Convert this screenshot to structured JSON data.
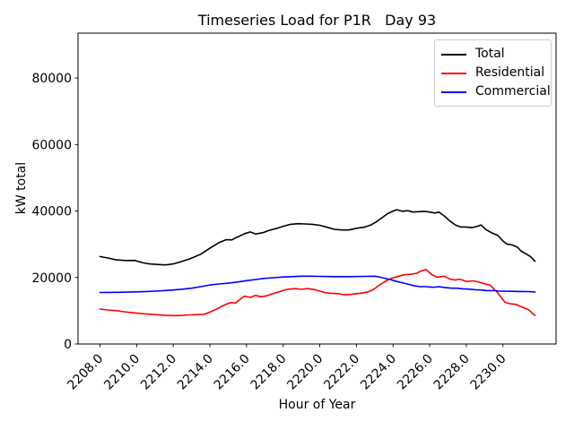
{
  "chart_data": {
    "type": "line",
    "title": "Timeseries Load for P1R   Day 93",
    "xlabel": "Hour of Year",
    "ylabel": "kW total",
    "grid": false,
    "legend_position": "upper right",
    "xlim": [
      2206.8,
      2232.9
    ],
    "ylim": [
      0,
      93500
    ],
    "xticks": [
      {
        "value": 2208,
        "label": "2208.0"
      },
      {
        "value": 2210,
        "label": "2210.0"
      },
      {
        "value": 2212,
        "label": "2212.0"
      },
      {
        "value": 2214,
        "label": "2214.0"
      },
      {
        "value": 2216,
        "label": "2216.0"
      },
      {
        "value": 2218,
        "label": "2218.0"
      },
      {
        "value": 2220,
        "label": "2220.0"
      },
      {
        "value": 2222,
        "label": "2222.0"
      },
      {
        "value": 2224,
        "label": "2224.0"
      },
      {
        "value": 2226,
        "label": "2226.0"
      },
      {
        "value": 2228,
        "label": "2228.0"
      },
      {
        "value": 2230,
        "label": "2230.0"
      }
    ],
    "yticks": [
      {
        "value": 0,
        "label": "0"
      },
      {
        "value": 20000,
        "label": "20000"
      },
      {
        "value": 40000,
        "label": "40000"
      },
      {
        "value": 60000,
        "label": "60000"
      },
      {
        "value": 80000,
        "label": "80000"
      }
    ],
    "series": [
      {
        "name": "Total",
        "color": "#000000",
        "points": [
          [
            2208.0,
            26300
          ],
          [
            2208.4,
            25900
          ],
          [
            2208.9,
            25300
          ],
          [
            2209.4,
            25100
          ],
          [
            2209.9,
            25150
          ],
          [
            2210.3,
            24500
          ],
          [
            2210.7,
            24100
          ],
          [
            2211.2,
            23900
          ],
          [
            2211.6,
            23800
          ],
          [
            2212.0,
            24100
          ],
          [
            2212.4,
            24700
          ],
          [
            2212.9,
            25600
          ],
          [
            2213.2,
            26300
          ],
          [
            2213.5,
            27000
          ],
          [
            2214.0,
            28800
          ],
          [
            2214.5,
            30500
          ],
          [
            2214.9,
            31400
          ],
          [
            2215.2,
            31300
          ],
          [
            2215.4,
            31900
          ],
          [
            2215.9,
            33200
          ],
          [
            2216.2,
            33700
          ],
          [
            2216.5,
            33100
          ],
          [
            2216.9,
            33500
          ],
          [
            2217.2,
            34100
          ],
          [
            2217.6,
            34700
          ],
          [
            2218.0,
            35400
          ],
          [
            2218.4,
            36000
          ],
          [
            2218.8,
            36200
          ],
          [
            2219.2,
            36100
          ],
          [
            2219.6,
            36000
          ],
          [
            2220.0,
            35700
          ],
          [
            2220.4,
            35100
          ],
          [
            2220.8,
            34500
          ],
          [
            2221.2,
            34300
          ],
          [
            2221.6,
            34300
          ],
          [
            2222.0,
            34800
          ],
          [
            2222.4,
            35100
          ],
          [
            2222.8,
            35800
          ],
          [
            2223.1,
            36800
          ],
          [
            2223.4,
            38000
          ],
          [
            2223.7,
            39200
          ],
          [
            2224.0,
            40000
          ],
          [
            2224.2,
            40400
          ],
          [
            2224.5,
            39900
          ],
          [
            2224.8,
            40100
          ],
          [
            2225.1,
            39700
          ],
          [
            2225.4,
            39800
          ],
          [
            2225.7,
            39900
          ],
          [
            2226.0,
            39700
          ],
          [
            2226.3,
            39400
          ],
          [
            2226.5,
            39700
          ],
          [
            2226.8,
            38500
          ],
          [
            2227.1,
            37000
          ],
          [
            2227.4,
            35800
          ],
          [
            2227.7,
            35200
          ],
          [
            2228.0,
            35200
          ],
          [
            2228.3,
            35000
          ],
          [
            2228.6,
            35400
          ],
          [
            2228.8,
            35800
          ],
          [
            2229.1,
            34300
          ],
          [
            2229.4,
            33400
          ],
          [
            2229.7,
            32700
          ],
          [
            2230.0,
            31000
          ],
          [
            2230.2,
            30100
          ],
          [
            2230.5,
            29800
          ],
          [
            2230.8,
            29100
          ],
          [
            2231.0,
            27900
          ],
          [
            2231.2,
            27300
          ],
          [
            2231.5,
            26300
          ],
          [
            2231.75,
            24900
          ]
        ]
      },
      {
        "name": "Residential",
        "color": "#ff0000",
        "points": [
          [
            2208.0,
            10500
          ],
          [
            2208.4,
            10250
          ],
          [
            2208.9,
            10050
          ],
          [
            2209.3,
            9700
          ],
          [
            2209.7,
            9450
          ],
          [
            2210.1,
            9250
          ],
          [
            2210.5,
            9050
          ],
          [
            2211.0,
            8850
          ],
          [
            2211.5,
            8650
          ],
          [
            2212.0,
            8550
          ],
          [
            2212.5,
            8600
          ],
          [
            2212.9,
            8750
          ],
          [
            2213.3,
            8850
          ],
          [
            2213.7,
            8950
          ],
          [
            2214.0,
            9600
          ],
          [
            2214.4,
            10600
          ],
          [
            2214.7,
            11500
          ],
          [
            2215.0,
            12200
          ],
          [
            2215.2,
            12500
          ],
          [
            2215.4,
            12300
          ],
          [
            2215.7,
            13700
          ],
          [
            2215.9,
            14400
          ],
          [
            2216.2,
            14000
          ],
          [
            2216.5,
            14600
          ],
          [
            2216.8,
            14200
          ],
          [
            2217.1,
            14500
          ],
          [
            2217.4,
            15100
          ],
          [
            2217.8,
            15700
          ],
          [
            2218.1,
            16300
          ],
          [
            2218.4,
            16550
          ],
          [
            2218.7,
            16650
          ],
          [
            2219.0,
            16450
          ],
          [
            2219.3,
            16650
          ],
          [
            2219.7,
            16400
          ],
          [
            2220.0,
            15900
          ],
          [
            2220.3,
            15450
          ],
          [
            2220.6,
            15250
          ],
          [
            2221.0,
            15150
          ],
          [
            2221.3,
            14850
          ],
          [
            2221.6,
            14850
          ],
          [
            2221.9,
            15050
          ],
          [
            2222.2,
            15250
          ],
          [
            2222.6,
            15600
          ],
          [
            2222.9,
            16300
          ],
          [
            2223.2,
            17500
          ],
          [
            2223.5,
            18600
          ],
          [
            2223.8,
            19500
          ],
          [
            2224.0,
            19900
          ],
          [
            2224.3,
            20400
          ],
          [
            2224.6,
            20800
          ],
          [
            2225.0,
            21000
          ],
          [
            2225.3,
            21300
          ],
          [
            2225.5,
            21900
          ],
          [
            2225.8,
            22400
          ],
          [
            2226.1,
            20900
          ],
          [
            2226.4,
            20100
          ],
          [
            2226.8,
            20400
          ],
          [
            2227.1,
            19500
          ],
          [
            2227.4,
            19250
          ],
          [
            2227.6,
            19500
          ],
          [
            2227.8,
            19250
          ],
          [
            2228.0,
            18800
          ],
          [
            2228.4,
            19000
          ],
          [
            2228.7,
            18600
          ],
          [
            2229.0,
            18100
          ],
          [
            2229.3,
            17700
          ],
          [
            2229.7,
            15500
          ],
          [
            2230.1,
            12600
          ],
          [
            2230.4,
            12100
          ],
          [
            2230.7,
            11900
          ],
          [
            2231.1,
            11000
          ],
          [
            2231.4,
            10300
          ],
          [
            2231.75,
            8600
          ]
        ]
      },
      {
        "name": "Commercial",
        "color": "#0000ff",
        "points": [
          [
            2208.0,
            15500
          ],
          [
            2208.5,
            15520
          ],
          [
            2209.0,
            15560
          ],
          [
            2209.5,
            15600
          ],
          [
            2210.0,
            15680
          ],
          [
            2210.5,
            15780
          ],
          [
            2211.0,
            15900
          ],
          [
            2211.5,
            16050
          ],
          [
            2212.0,
            16250
          ],
          [
            2212.5,
            16500
          ],
          [
            2213.0,
            16800
          ],
          [
            2213.5,
            17250
          ],
          [
            2214.0,
            17750
          ],
          [
            2214.5,
            18050
          ],
          [
            2215.0,
            18300
          ],
          [
            2215.5,
            18650
          ],
          [
            2216.0,
            19050
          ],
          [
            2216.5,
            19400
          ],
          [
            2217.0,
            19750
          ],
          [
            2217.5,
            19950
          ],
          [
            2218.0,
            20150
          ],
          [
            2218.5,
            20250
          ],
          [
            2219.0,
            20400
          ],
          [
            2219.5,
            20400
          ],
          [
            2220.0,
            20350
          ],
          [
            2220.5,
            20300
          ],
          [
            2221.0,
            20250
          ],
          [
            2221.5,
            20250
          ],
          [
            2222.0,
            20300
          ],
          [
            2222.5,
            20350
          ],
          [
            2223.0,
            20400
          ],
          [
            2223.2,
            20200
          ],
          [
            2223.6,
            19700
          ],
          [
            2223.9,
            19300
          ],
          [
            2224.2,
            18800
          ],
          [
            2224.6,
            18300
          ],
          [
            2224.9,
            17900
          ],
          [
            2225.2,
            17450
          ],
          [
            2225.5,
            17250
          ],
          [
            2225.8,
            17250
          ],
          [
            2226.2,
            17050
          ],
          [
            2226.5,
            17250
          ],
          [
            2226.8,
            17000
          ],
          [
            2227.2,
            16800
          ],
          [
            2227.5,
            16800
          ],
          [
            2227.8,
            16600
          ],
          [
            2228.1,
            16520
          ],
          [
            2228.5,
            16340
          ],
          [
            2228.8,
            16250
          ],
          [
            2229.1,
            16070
          ],
          [
            2229.5,
            16070
          ],
          [
            2229.8,
            15900
          ],
          [
            2230.1,
            15900
          ],
          [
            2230.5,
            15850
          ],
          [
            2231.0,
            15800
          ],
          [
            2231.4,
            15750
          ],
          [
            2231.75,
            15650
          ]
        ]
      }
    ]
  }
}
